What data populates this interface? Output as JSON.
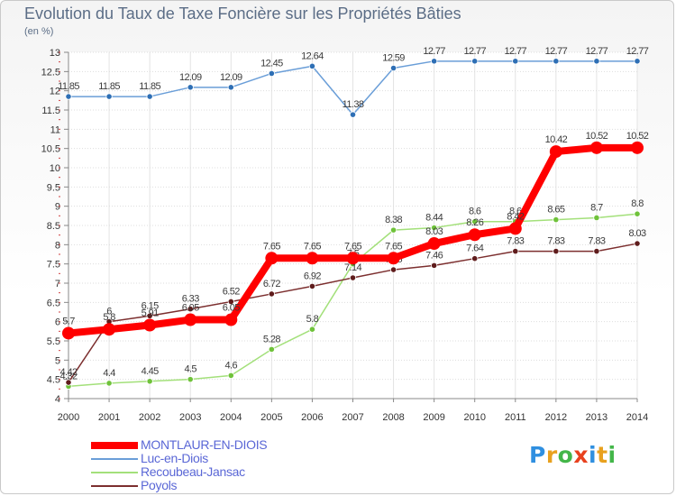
{
  "chart_data": {
    "type": "line",
    "title": "Evolution du Taux de Taxe Foncière sur les Propriétés Bâties",
    "ylabel": "(en %)",
    "xlabel": "",
    "ylim": [
      4,
      13
    ],
    "yticks": [
      "4",
      "4.5",
      "5",
      "5.5",
      "6",
      "6.5",
      "7",
      "7.5",
      "8",
      "8.5",
      "9",
      "9.5",
      "10",
      "10.5",
      "11",
      "11.5",
      "12",
      "12.5",
      "13"
    ],
    "categories": [
      "2000",
      "2001",
      "2002",
      "2003",
      "2004",
      "2005",
      "2006",
      "2007",
      "2008",
      "2009",
      "2010",
      "2011",
      "2012",
      "2013",
      "2014"
    ],
    "series": [
      {
        "name": "Luc-en-Diois",
        "color": "#6a9ed8",
        "point_color": "#2e6fb5",
        "values": [
          11.85,
          11.85,
          11.85,
          12.09,
          12.09,
          12.45,
          12.64,
          11.38,
          12.59,
          12.77,
          12.77,
          12.77,
          12.77,
          12.77,
          12.77
        ],
        "labels": [
          "11.85",
          "11.85",
          "11.85",
          "12.09",
          "12.09",
          "12.45",
          "12.64",
          "11.38",
          "12.59",
          "12.77",
          "12.77",
          "12.77",
          "12.77",
          "12.77",
          "12.77"
        ]
      },
      {
        "name": "Recoubeau-Jansac",
        "color": "#a3e07a",
        "point_color": "#6fc23a",
        "values": [
          4.32,
          4.4,
          4.45,
          4.5,
          4.6,
          5.28,
          5.8,
          7.5,
          8.38,
          8.44,
          8.6,
          8.6,
          8.65,
          8.7,
          8.8
        ],
        "labels": [
          "4.32",
          "4.4",
          "4.45",
          "4.5",
          "4.6",
          "5.28",
          "5.8",
          "7.5",
          "8.38",
          "8.44",
          "8.6",
          "8.6",
          "8.65",
          "8.7",
          "8.8"
        ]
      },
      {
        "name": "Poyols",
        "color": "#7c2f2f",
        "point_color": "#5f1c1c",
        "values": [
          4.42,
          6.0,
          6.15,
          6.33,
          6.52,
          6.72,
          6.92,
          7.14,
          7.35,
          7.46,
          7.64,
          7.83,
          7.83,
          7.83,
          8.03
        ],
        "labels": [
          "4.42",
          "6",
          "6.15",
          "6.33",
          "6.52",
          "6.72",
          "6.92",
          "7.14",
          "7.35",
          "7.46",
          "7.64",
          "7.83",
          "7.83",
          "7.83",
          "8.03"
        ]
      },
      {
        "name": "MONTLAUR-EN-DIOIS",
        "color": "#ff0000",
        "point_color": "#ff0000",
        "highlight": true,
        "values": [
          5.7,
          5.8,
          5.91,
          6.05,
          6.05,
          7.65,
          7.65,
          7.65,
          7.65,
          8.03,
          8.26,
          8.42,
          10.42,
          10.52,
          10.52
        ],
        "labels": [
          "5.7",
          "5.8",
          "5.91",
          "6.05",
          "6.05",
          "7.65",
          "7.65",
          "7.65",
          "7.65",
          "8.03",
          "8.26",
          "8.42",
          "10.42",
          "10.52",
          "10.52"
        ]
      }
    ]
  },
  "legend": [
    {
      "label": "MONTLAUR-EN-DIOIS",
      "color": "#ff0000",
      "thick": true
    },
    {
      "label": "Luc-en-Diois",
      "color": "#6a9ed8",
      "thick": false
    },
    {
      "label": "Recoubeau-Jansac",
      "color": "#a3e07a",
      "thick": false
    },
    {
      "label": "Poyols",
      "color": "#7c2f2f",
      "thick": false
    }
  ],
  "logo": {
    "letters": [
      "P",
      "r",
      "o",
      "x",
      "i",
      "t",
      "i"
    ],
    "colors": [
      "#2f8fe0",
      "#e8a11e",
      "#43b649",
      "#e8411e",
      "#2f8fe0",
      "#e8a11e",
      "#43b649"
    ]
  }
}
